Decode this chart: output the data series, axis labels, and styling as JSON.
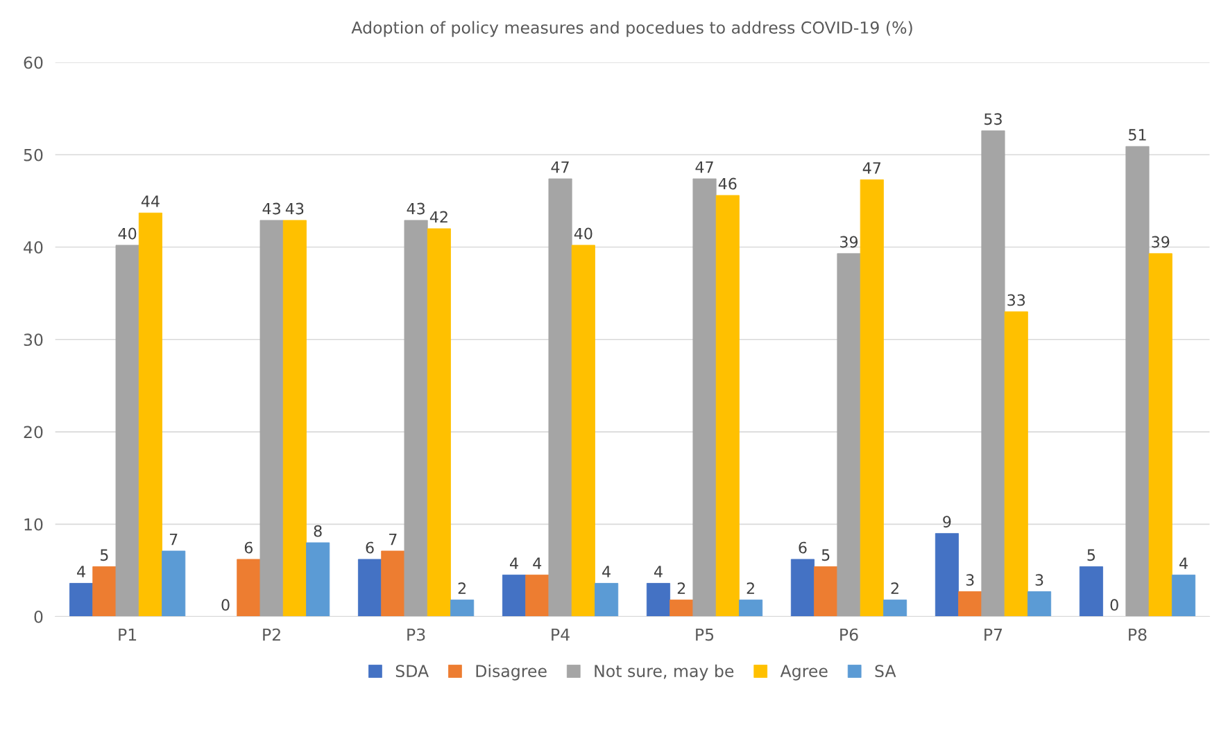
{
  "chart_data": {
    "type": "bar",
    "title": "Adoption of policy measures and pocedues to address COVID-19 (%)",
    "categories": [
      "P1",
      "P2",
      "P3",
      "P4",
      "P5",
      "P6",
      "P7",
      "P8"
    ],
    "series": [
      {
        "name": "SDA",
        "color": "#4472c4",
        "values": [
          3.6,
          0,
          6.2,
          4.5,
          3.6,
          6.2,
          9.0,
          5.4
        ],
        "value_labels": [
          "4",
          "0",
          "6",
          "4",
          "4",
          "6",
          "9",
          "5"
        ]
      },
      {
        "name": "Disagree",
        "color": "#ed7d31",
        "values": [
          5.4,
          6.2,
          7.1,
          4.5,
          1.8,
          5.4,
          2.7,
          0
        ],
        "value_labels": [
          "5",
          "6",
          "7",
          "4",
          "2",
          "5",
          "3",
          "0"
        ]
      },
      {
        "name": "Not sure, may be",
        "color": "#a5a5a5",
        "values": [
          40.2,
          42.9,
          42.9,
          47.4,
          47.4,
          39.3,
          52.6,
          50.9
        ],
        "value_labels": [
          "40",
          "43",
          "43",
          "47",
          "47",
          "39",
          "53",
          "51"
        ]
      },
      {
        "name": "Agree",
        "color": "#ffc000",
        "values": [
          43.7,
          42.9,
          42.0,
          40.2,
          45.6,
          47.3,
          33.0,
          39.3
        ],
        "value_labels": [
          "44",
          "43",
          "42",
          "40",
          "46",
          "47",
          "33",
          "39"
        ]
      },
      {
        "name": "SA",
        "color": "#5b9bd5",
        "values": [
          7.1,
          8.0,
          1.8,
          3.6,
          1.8,
          1.8,
          2.7,
          4.5
        ],
        "value_labels": [
          "7",
          "8",
          "2",
          "4",
          "2",
          "2",
          "3",
          "4"
        ]
      }
    ],
    "ylim": [
      0,
      60
    ],
    "yticks": [
      0,
      10,
      20,
      30,
      40,
      50,
      60
    ],
    "grid": "y",
    "legend": "bottom"
  }
}
